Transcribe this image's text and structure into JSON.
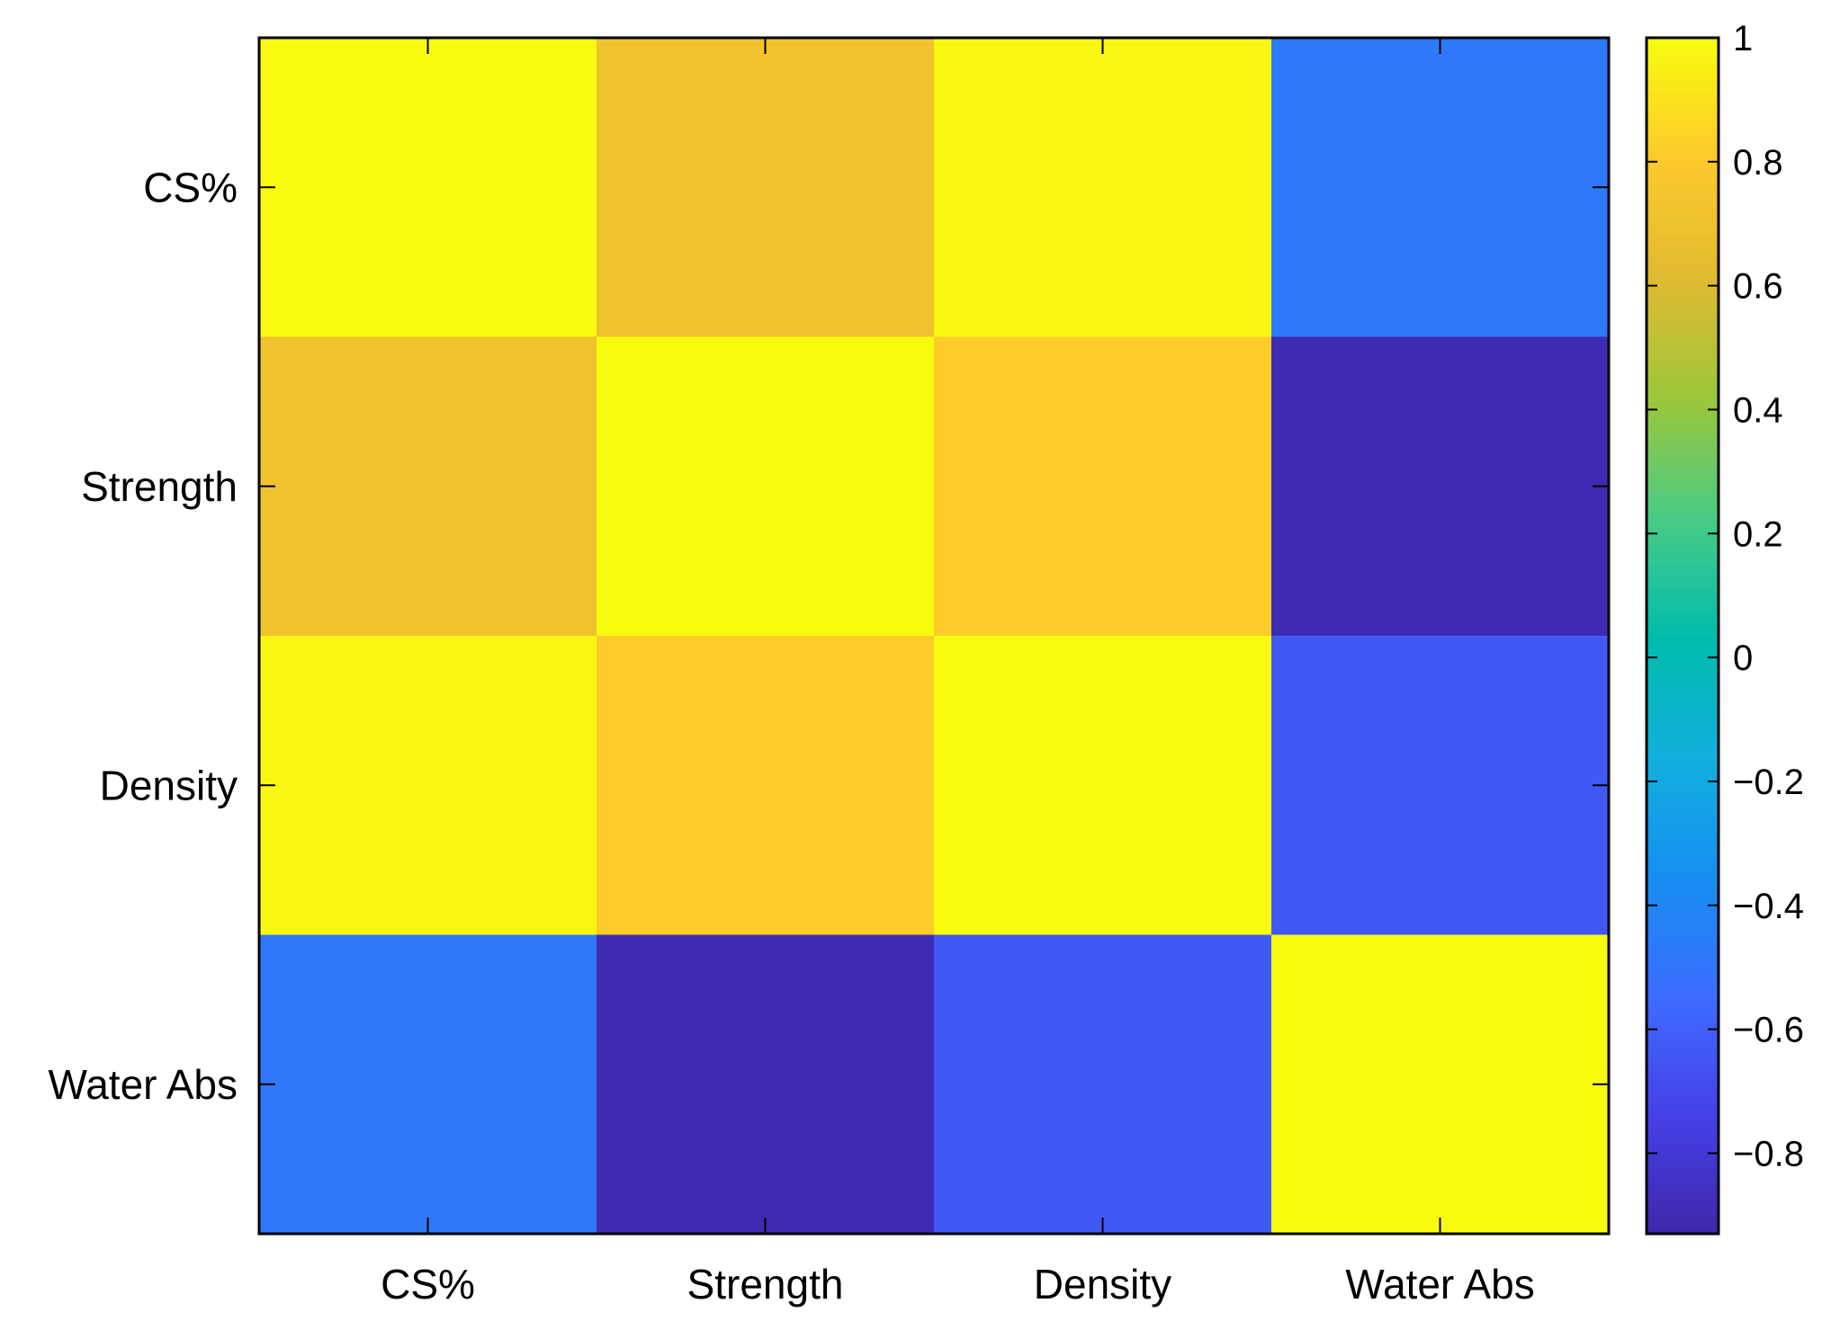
{
  "chart_data": {
    "type": "heatmap",
    "title": "",
    "xlabel": "",
    "ylabel": "",
    "x_categories": [
      "CS%",
      "Strength",
      "Density",
      "Water Abs"
    ],
    "y_categories": [
      "CS%",
      "Strength",
      "Density",
      "Water Abs"
    ],
    "values": [
      [
        1.0,
        0.72,
        0.98,
        -0.47
      ],
      [
        0.72,
        1.0,
        0.82,
        -0.9
      ],
      [
        0.98,
        0.82,
        1.0,
        -0.63
      ],
      [
        -0.47,
        -0.9,
        -0.63,
        1.0
      ]
    ],
    "colorbar": {
      "min": -0.93,
      "max": 1.0,
      "ticks": [
        1,
        0.8,
        0.6,
        0.4,
        0.2,
        0,
        -0.2,
        -0.4,
        -0.6,
        -0.8
      ],
      "tick_labels": [
        "1",
        "0.8",
        "0.6",
        "0.4",
        "0.2",
        "0",
        "−0.2",
        "−0.4",
        "−0.6",
        "−0.8"
      ],
      "colormap": "parula",
      "placement": "right"
    },
    "grid": false
  }
}
